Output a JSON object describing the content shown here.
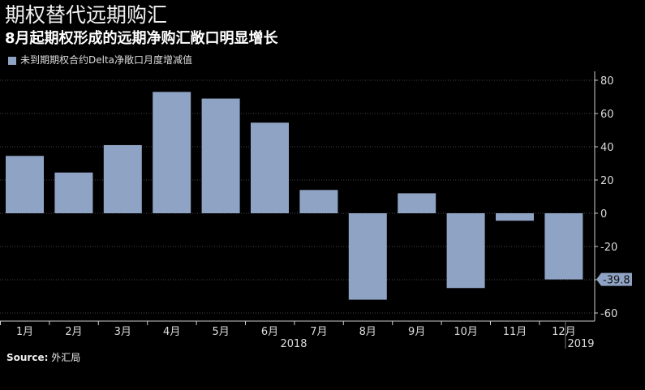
{
  "header": {
    "title": "期权替代远期购汇",
    "subtitle": "8月起期权形成的远期净购汇敞口明显增长"
  },
  "source": {
    "label": "Source:",
    "value": "外汇局"
  },
  "chart_data": {
    "type": "bar",
    "title": "期权替代远期购汇",
    "legend": [
      {
        "name": "未到期期权合约Delta净敞口月度增减值",
        "color": "#8fa3c4"
      }
    ],
    "categories": [
      "1月",
      "2月",
      "3月",
      "4月",
      "5月",
      "6月",
      "7月",
      "8月",
      "9月",
      "10月",
      "11月",
      "12月"
    ],
    "values": [
      34.5,
      24.5,
      41,
      73,
      69,
      54.5,
      14,
      -52,
      12,
      -45,
      -4.5,
      -39.8
    ],
    "year_labels": [
      "2018",
      "2019"
    ],
    "yticks": [
      80,
      60,
      40,
      20,
      0,
      -20,
      -40,
      -60
    ],
    "ylim": [
      -65,
      85
    ],
    "last_value_label": "-39.8",
    "axis_side": "right",
    "grid": true
  }
}
